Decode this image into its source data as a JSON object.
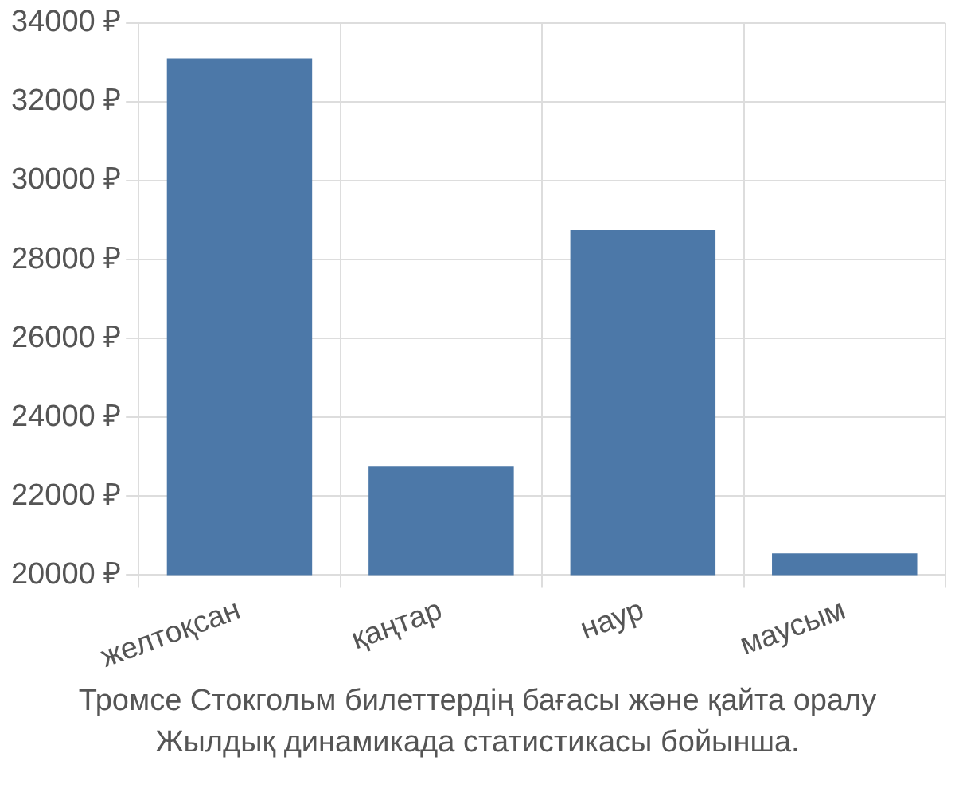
{
  "chart_data": {
    "type": "bar",
    "categories": [
      "желтоқсан",
      "қаңтар",
      "наур",
      "маусым"
    ],
    "values": [
      33100,
      22750,
      28750,
      20550
    ],
    "color": "#4c78a8",
    "ylim": [
      20000,
      34000
    ],
    "yticks": [
      {
        "value": 20000,
        "label": "20000 ₽"
      },
      {
        "value": 22000,
        "label": "22000 ₽"
      },
      {
        "value": 24000,
        "label": "24000 ₽"
      },
      {
        "value": 26000,
        "label": "26000 ₽"
      },
      {
        "value": 28000,
        "label": "28000 ₽"
      },
      {
        "value": 30000,
        "label": "30000 ₽"
      },
      {
        "value": 32000,
        "label": "32000 ₽"
      },
      {
        "value": 34000,
        "label": "34000 ₽"
      }
    ],
    "grid": true,
    "annotations": [
      "Тромсе Стокгольм билеттердің бағасы және қайта оралу",
      "Жылдық динамикада статистикасы бойынша."
    ]
  }
}
